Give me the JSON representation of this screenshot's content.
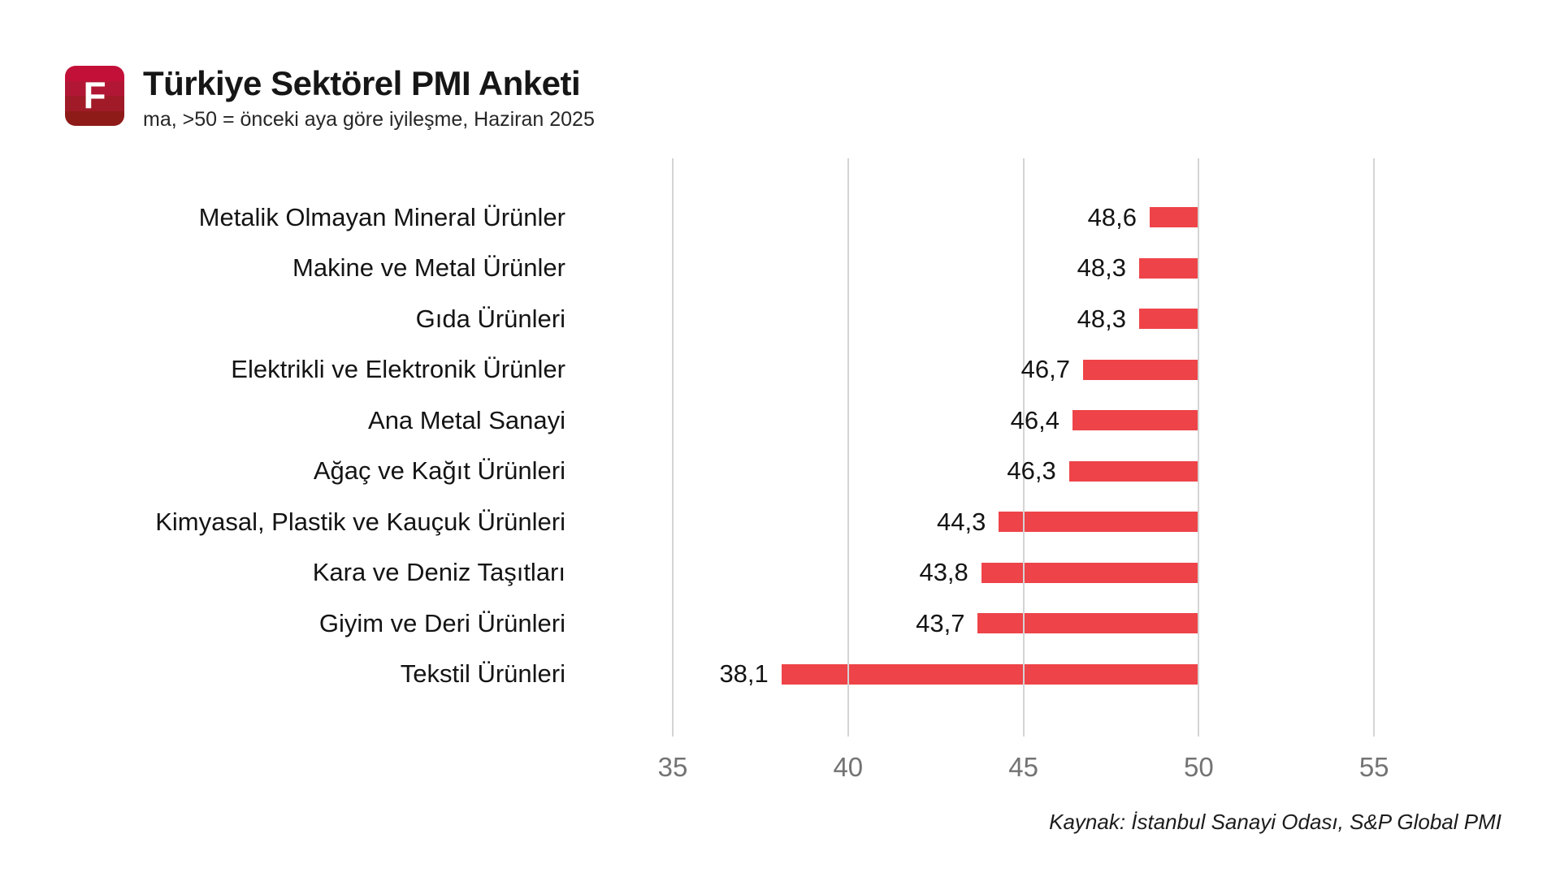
{
  "header": {
    "logo_letter": "F",
    "title": "Türkiye Sektörel PMI Anketi",
    "subtitle": "ma, >50 = önceki aya göre iyileşme, Haziran 2025"
  },
  "footer": {
    "source": "Kaynak: İstanbul Sanayi Odası, S&P Global PMI"
  },
  "colors": {
    "bar": "#ee4348",
    "gridline": "#d4d4d4",
    "tick_label": "#737373",
    "label_text": "#141414",
    "logo_stripes": [
      "#c31038",
      "#b11734",
      "#a01a27",
      "#8e1b18"
    ],
    "logo_letter_color": "#ffffff"
  },
  "chart_data": {
    "type": "bar",
    "orientation": "horizontal",
    "title": "Türkiye Sektörel PMI Anketi",
    "subtitle": "ma, >50 = önceki aya göre iyileşme, Haziran 2025",
    "categories": [
      "Metalik Olmayan Mineral Ürünler",
      "Makine ve Metal Ürünler",
      "Gıda Ürünleri",
      "Elektrikli ve Elektronik Ürünler",
      "Ana Metal Sanayi",
      "Ağaç ve Kağıt Ürünleri",
      "Kimyasal, Plastik ve Kauçuk Ürünleri",
      "Kara ve Deniz Taşıtları",
      "Giyim ve Deri Ürünleri",
      "Tekstil Ürünleri"
    ],
    "values": [
      48.6,
      48.3,
      48.3,
      46.7,
      46.4,
      46.3,
      44.3,
      43.8,
      43.7,
      38.1
    ],
    "value_labels": [
      "48,6",
      "48,3",
      "48,3",
      "46,7",
      "46,4",
      "46,3",
      "44,3",
      "43,8",
      "43,7",
      "38,1"
    ],
    "bars_end_at": 50,
    "xlim": [
      35,
      55
    ],
    "xticks": [
      35,
      40,
      45,
      50,
      55
    ],
    "xtick_labels": [
      "35",
      "40",
      "45",
      "50",
      "55"
    ],
    "grid": "vertical",
    "legend": "none"
  }
}
